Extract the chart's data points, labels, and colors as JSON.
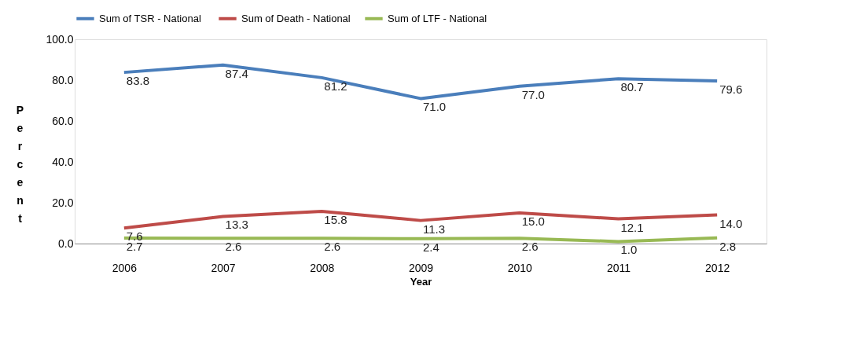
{
  "chart_data": {
    "type": "line",
    "xlabel": "Year",
    "ylabel": "Percent",
    "categories": [
      "2006",
      "2007",
      "2008",
      "2009",
      "2010",
      "2011",
      "2012"
    ],
    "series": [
      {
        "name": "Sum of TSR  - National",
        "color": "#4a7ebb",
        "values": [
          83.8,
          87.4,
          81.2,
          71.0,
          77.0,
          80.7,
          79.6
        ],
        "value_labels": [
          "83.8",
          "87.4",
          "81.2",
          "71.0",
          "77.0",
          "80.7",
          "79.6"
        ]
      },
      {
        "name": "Sum of Death - National",
        "color": "#be4b48",
        "values": [
          7.6,
          13.3,
          15.8,
          11.3,
          15.0,
          12.1,
          14.0
        ],
        "value_labels": [
          "7.6",
          "13.3",
          "15.8",
          "11.3",
          "15.0",
          "12.1",
          "14.0"
        ]
      },
      {
        "name": "Sum of LTF - National",
        "color": "#98b954",
        "values": [
          2.7,
          2.6,
          2.6,
          2.4,
          2.6,
          1.0,
          2.8
        ],
        "value_labels": [
          "2.7",
          "2.6",
          "2.6",
          "2.4",
          "2.6",
          "1.0",
          "2.8"
        ]
      }
    ],
    "ylim": [
      0,
      100
    ],
    "yticks": [
      {
        "value": 0,
        "label": "0.0"
      },
      {
        "value": 20,
        "label": "20.0"
      },
      {
        "value": 40,
        "label": "40.0"
      },
      {
        "value": 60,
        "label": "60.0"
      },
      {
        "value": 80,
        "label": "80.0"
      },
      {
        "value": 100,
        "label": "100.0"
      }
    ],
    "grid": false,
    "legend": "top",
    "marker": "none",
    "line_style": "solid"
  }
}
